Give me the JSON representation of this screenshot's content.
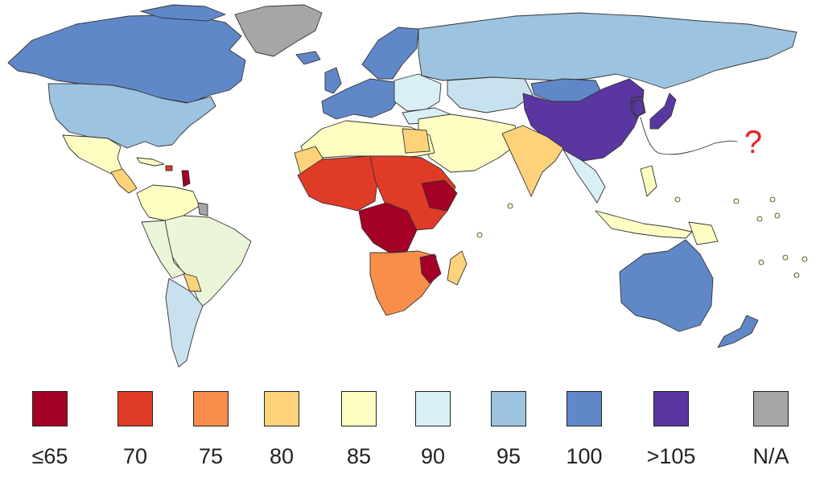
{
  "legend": [
    {
      "label": "≤65",
      "color": "#a50026"
    },
    {
      "label": "70",
      "color": "#e03b26"
    },
    {
      "label": "75",
      "color": "#f98e4a"
    },
    {
      "label": "80",
      "color": "#fed27a"
    },
    {
      "label": "85",
      "color": "#fefec2"
    },
    {
      "label": "90",
      "color": "#d9eff6"
    },
    {
      "label": "95",
      "color": "#9cc3e0"
    },
    {
      "label": "100",
      "color": "#6088c8"
    },
    {
      "label": ">105",
      "color": "#5a37a0"
    },
    {
      "label": "N/A",
      "color": "#a6a6a6"
    }
  ],
  "annotation": {
    "text": "?",
    "color": "#e8202a"
  }
}
